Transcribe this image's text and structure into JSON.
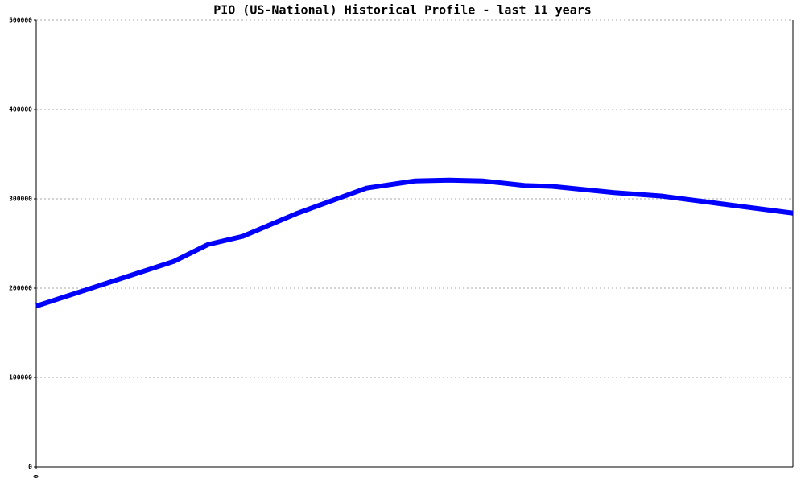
{
  "chart_data": {
    "type": "line",
    "title": "PIO (US-National) Historical Profile - last 11 years",
    "x": [
      0,
      2,
      2.5,
      3,
      3.8,
      4.8,
      5.5,
      6,
      6.5,
      7.1,
      7.5,
      8.4,
      9.1,
      11
    ],
    "series": [
      {
        "name": "PIO",
        "color": "#0000ff",
        "values": [
          180000,
          230000,
          249000,
          258000,
          284000,
          312000,
          320000,
          321000,
          320000,
          315000,
          314000,
          307000,
          303000,
          284000
        ]
      }
    ],
    "xlim": [
      0,
      11
    ],
    "xticks": [
      0
    ],
    "ylim": [
      0,
      500000
    ],
    "yticks": [
      0,
      100000,
      200000,
      300000,
      400000,
      500000
    ],
    "grid": true
  }
}
